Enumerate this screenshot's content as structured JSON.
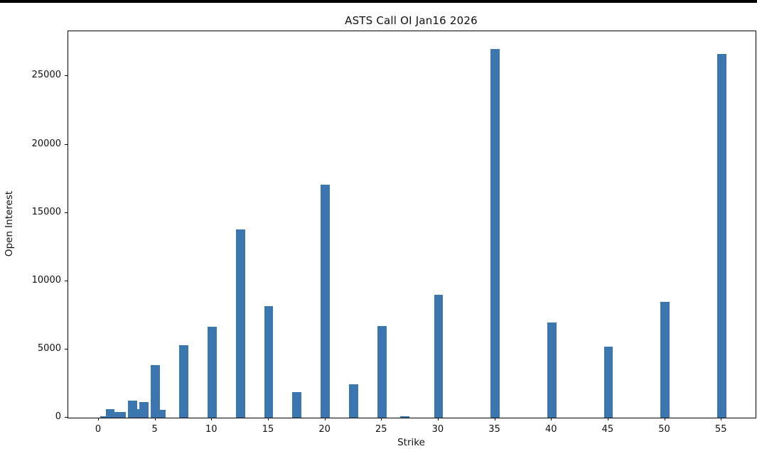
{
  "window": {
    "background": "#ffffff",
    "top_border_color": "#000000"
  },
  "chart_data": {
    "type": "bar",
    "title": "ASTS Call OI Jan16 2026",
    "xlabel": "Strike",
    "ylabel": "Open Interest",
    "strikes": [
      0.5,
      1,
      1.5,
      2,
      3,
      3.5,
      4,
      5,
      5.5,
      7.5,
      10,
      12.5,
      15,
      17.5,
      20,
      22.5,
      25,
      27,
      30,
      35,
      40,
      45,
      50,
      55
    ],
    "open_interest": [
      100,
      620,
      400,
      400,
      1270,
      620,
      1150,
      3850,
      580,
      5310,
      6670,
      13760,
      8180,
      1880,
      17080,
      2450,
      6730,
      80,
      9010,
      27000,
      6980,
      5190,
      8470,
      26650
    ],
    "bar_width_strike_units": 0.8,
    "bar_color": "#3c76af",
    "axis_color": "#000000",
    "x_ticks": [
      0,
      5,
      10,
      15,
      20,
      25,
      30,
      35,
      40,
      45,
      50,
      55
    ],
    "y_ticks": [
      0,
      5000,
      10000,
      15000,
      20000,
      25000
    ],
    "xlim": [
      -2.7,
      58
    ],
    "ylim": [
      0,
      28300
    ],
    "grid": false,
    "legend": false
  }
}
